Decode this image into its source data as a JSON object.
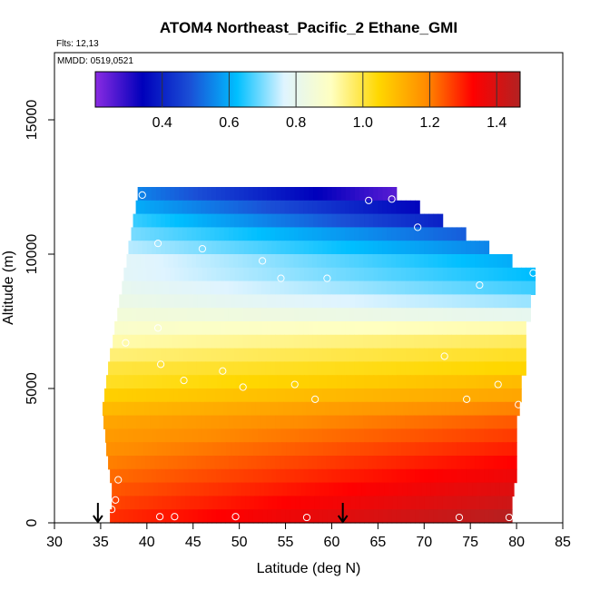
{
  "chart_data": {
    "type": "heatmap",
    "title": "ATOM4 Northeast_Pacific_2 Ethane_GMI",
    "flights_label": "Flts: 12,13",
    "date_label": "MMDD: 0519,0521",
    "xlabel": "Latitude (deg N)",
    "ylabel": "Altitude (m)",
    "xlim": [
      30,
      85
    ],
    "ylim": [
      0,
      17500
    ],
    "x_ticks": [
      "30",
      "35",
      "40",
      "45",
      "50",
      "55",
      "60",
      "65",
      "70",
      "75",
      "80",
      "85"
    ],
    "y_ticks": [
      "0",
      "5000",
      "10000",
      "15000"
    ],
    "colorbar": {
      "range": [
        0.2,
        1.47
      ],
      "ticks": [
        "0.4",
        "0.6",
        "0.8",
        "1.0",
        "1.2",
        "1.4"
      ],
      "colors": [
        "#8a2be2",
        "#0000bb",
        "#1a4fd6",
        "#00bfff",
        "#dff4ff",
        "#ffffc0",
        "#ffd700",
        "#ff8c00",
        "#ff0000",
        "#b22222"
      ]
    },
    "bands": [
      {
        "alt": [
          12000,
          12500
        ],
        "lat": [
          39,
          67
        ],
        "v_start": 0.55,
        "v_end": 0.25
      },
      {
        "alt": [
          11500,
          12000
        ],
        "lat": [
          38.8,
          69.5
        ],
        "v_start": 0.6,
        "v_end": 0.35
      },
      {
        "alt": [
          11000,
          11500
        ],
        "lat": [
          38.5,
          72
        ],
        "v_start": 0.66,
        "v_end": 0.4
      },
      {
        "alt": [
          10500,
          11000
        ],
        "lat": [
          38.3,
          74.5
        ],
        "v_start": 0.7,
        "v_end": 0.5
      },
      {
        "alt": [
          10000,
          10500
        ],
        "lat": [
          38,
          77
        ],
        "v_start": 0.74,
        "v_end": 0.55
      },
      {
        "alt": [
          9500,
          10000
        ],
        "lat": [
          37.8,
          79.5
        ],
        "v_start": 0.78,
        "v_end": 0.6
      },
      {
        "alt": [
          9000,
          9500
        ],
        "lat": [
          37.5,
          82
        ],
        "v_start": 0.78,
        "v_end": 0.62
      },
      {
        "alt": [
          8500,
          9000
        ],
        "lat": [
          37.3,
          82
        ],
        "v_start": 0.8,
        "v_end": 0.66
      },
      {
        "alt": [
          8000,
          8500
        ],
        "lat": [
          37,
          81.5
        ],
        "v_start": 0.82,
        "v_end": 0.72
      },
      {
        "alt": [
          7500,
          8000
        ],
        "lat": [
          36.8,
          81.5
        ],
        "v_start": 0.85,
        "v_end": 0.8
      },
      {
        "alt": [
          7000,
          7500
        ],
        "lat": [
          36.5,
          81
        ],
        "v_start": 0.88,
        "v_end": 0.92
      },
      {
        "alt": [
          6500,
          7000
        ],
        "lat": [
          36.3,
          81
        ],
        "v_start": 0.92,
        "v_end": 0.98
      },
      {
        "alt": [
          6000,
          6500
        ],
        "lat": [
          36,
          81
        ],
        "v_start": 0.96,
        "v_end": 1.02
      },
      {
        "alt": [
          5500,
          6000
        ],
        "lat": [
          35.8,
          81
        ],
        "v_start": 1.0,
        "v_end": 1.05
      },
      {
        "alt": [
          5000,
          5500
        ],
        "lat": [
          35.6,
          80.5
        ],
        "v_start": 1.02,
        "v_end": 1.1
      },
      {
        "alt": [
          4500,
          5000
        ],
        "lat": [
          35.4,
          80.5
        ],
        "v_start": 1.06,
        "v_end": 1.14
      },
      {
        "alt": [
          4000,
          4500
        ],
        "lat": [
          35.2,
          80.3
        ],
        "v_start": 1.1,
        "v_end": 1.2
      },
      {
        "alt": [
          3500,
          4000
        ],
        "lat": [
          35.3,
          80
        ],
        "v_start": 1.14,
        "v_end": 1.24
      },
      {
        "alt": [
          3000,
          3500
        ],
        "lat": [
          35.5,
          80
        ],
        "v_start": 1.16,
        "v_end": 1.27
      },
      {
        "alt": [
          2500,
          3000
        ],
        "lat": [
          35.6,
          80
        ],
        "v_start": 1.18,
        "v_end": 1.3
      },
      {
        "alt": [
          2000,
          2500
        ],
        "lat": [
          35.8,
          80
        ],
        "v_start": 1.2,
        "v_end": 1.33
      },
      {
        "alt": [
          1500,
          2000
        ],
        "lat": [
          36,
          80
        ],
        "v_start": 1.22,
        "v_end": 1.36
      },
      {
        "alt": [
          1000,
          1500
        ],
        "lat": [
          36.2,
          79.7
        ],
        "v_start": 1.24,
        "v_end": 1.39
      },
      {
        "alt": [
          500,
          1000
        ],
        "lat": [
          36.2,
          79.5
        ],
        "v_start": 1.26,
        "v_end": 1.42
      },
      {
        "alt": [
          0,
          500
        ],
        "lat": [
          36,
          79.5
        ],
        "v_start": 1.28,
        "v_end": 1.46
      }
    ],
    "sample_points": [
      {
        "lat": 39.5,
        "alt": 12200
      },
      {
        "lat": 64,
        "alt": 12000
      },
      {
        "lat": 66.5,
        "alt": 12050
      },
      {
        "lat": 69.3,
        "alt": 11000
      },
      {
        "lat": 41.2,
        "alt": 10400
      },
      {
        "lat": 46,
        "alt": 10200
      },
      {
        "lat": 52.5,
        "alt": 9750
      },
      {
        "lat": 54.5,
        "alt": 9100
      },
      {
        "lat": 59.5,
        "alt": 9100
      },
      {
        "lat": 76,
        "alt": 8850
      },
      {
        "lat": 81.8,
        "alt": 9300
      },
      {
        "lat": 41.2,
        "alt": 7250
      },
      {
        "lat": 37.7,
        "alt": 6700
      },
      {
        "lat": 72.2,
        "alt": 6200
      },
      {
        "lat": 41.5,
        "alt": 5900
      },
      {
        "lat": 48.2,
        "alt": 5650
      },
      {
        "lat": 44,
        "alt": 5300
      },
      {
        "lat": 50.4,
        "alt": 5050
      },
      {
        "lat": 56,
        "alt": 5150
      },
      {
        "lat": 78,
        "alt": 5150
      },
      {
        "lat": 58.2,
        "alt": 4600
      },
      {
        "lat": 74.6,
        "alt": 4600
      },
      {
        "lat": 80.2,
        "alt": 4400
      },
      {
        "lat": 36.9,
        "alt": 1600
      },
      {
        "lat": 36.6,
        "alt": 850
      },
      {
        "lat": 36.2,
        "alt": 500
      },
      {
        "lat": 41.4,
        "alt": 230
      },
      {
        "lat": 43,
        "alt": 230
      },
      {
        "lat": 49.6,
        "alt": 230
      },
      {
        "lat": 57.3,
        "alt": 200
      },
      {
        "lat": 73.8,
        "alt": 200
      },
      {
        "lat": 79.2,
        "alt": 200
      }
    ],
    "flight_markers": [
      {
        "lat": 34.7,
        "alt": 0
      },
      {
        "lat": 61.2,
        "alt": 0
      }
    ]
  }
}
